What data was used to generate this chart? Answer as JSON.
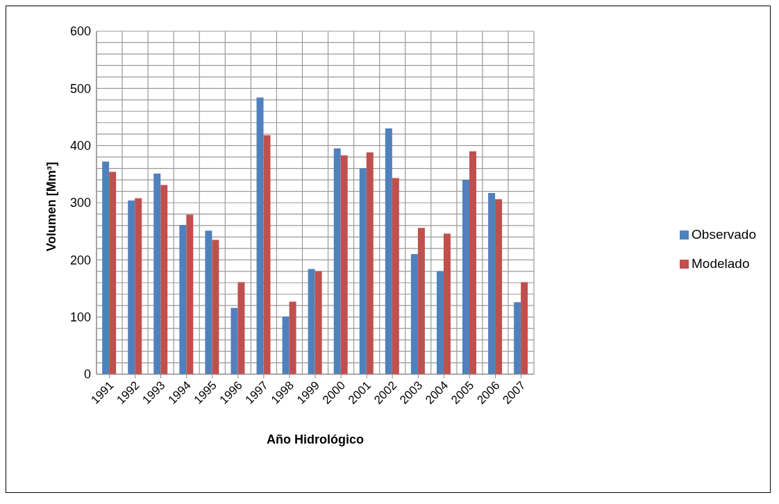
{
  "chart_data": {
    "type": "bar",
    "xlabel": "Año Hidrológico",
    "ylabel": "Volumen [Mm³]",
    "categories": [
      "1991",
      "1992",
      "1993",
      "1994",
      "1995",
      "1996",
      "1997",
      "1998",
      "1999",
      "2000",
      "2001",
      "2002",
      "2003",
      "2004",
      "2005",
      "2006",
      "2007"
    ],
    "series": [
      {
        "name": "Observado",
        "color": "#4f81bd",
        "values": [
          372,
          304,
          351,
          261,
          251,
          116,
          484,
          101,
          184,
          395,
          360,
          430,
          210,
          180,
          340,
          317,
          126
        ]
      },
      {
        "name": "Modelado",
        "color": "#c0504d",
        "values": [
          354,
          308,
          331,
          279,
          235,
          161,
          418,
          127,
          180,
          383,
          388,
          343,
          256,
          246,
          390,
          306,
          161
        ]
      }
    ],
    "ylim": [
      0,
      600
    ],
    "yticks": [
      0,
      {
        "value": 20,
        "label": null
      },
      {
        "value": 40,
        "label": null
      },
      {
        "value": 60,
        "label": null
      },
      {
        "value": 80,
        "label": null
      },
      100,
      {
        "value": 120,
        "label": null
      },
      {
        "value": 140,
        "label": null
      },
      {
        "value": 160,
        "label": null
      },
      {
        "value": 180,
        "label": null
      },
      200,
      {
        "value": 220,
        "label": null
      },
      {
        "value": 240,
        "label": null
      },
      {
        "value": 260,
        "label": null
      },
      {
        "value": 280,
        "label": null
      },
      300,
      {
        "value": 320,
        "label": null
      },
      {
        "value": 340,
        "label": null
      },
      {
        "value": 360,
        "label": null
      },
      {
        "value": 380,
        "label": null
      },
      400,
      {
        "value": 420,
        "label": null
      },
      {
        "value": 440,
        "label": null
      },
      {
        "value": 460,
        "label": null
      },
      {
        "value": 480,
        "label": null
      },
      500,
      {
        "value": 520,
        "label": null
      },
      {
        "value": 540,
        "label": null
      },
      {
        "value": 560,
        "label": null
      },
      {
        "value": 580,
        "label": null
      },
      600
    ],
    "grid": true,
    "legend": "right"
  }
}
